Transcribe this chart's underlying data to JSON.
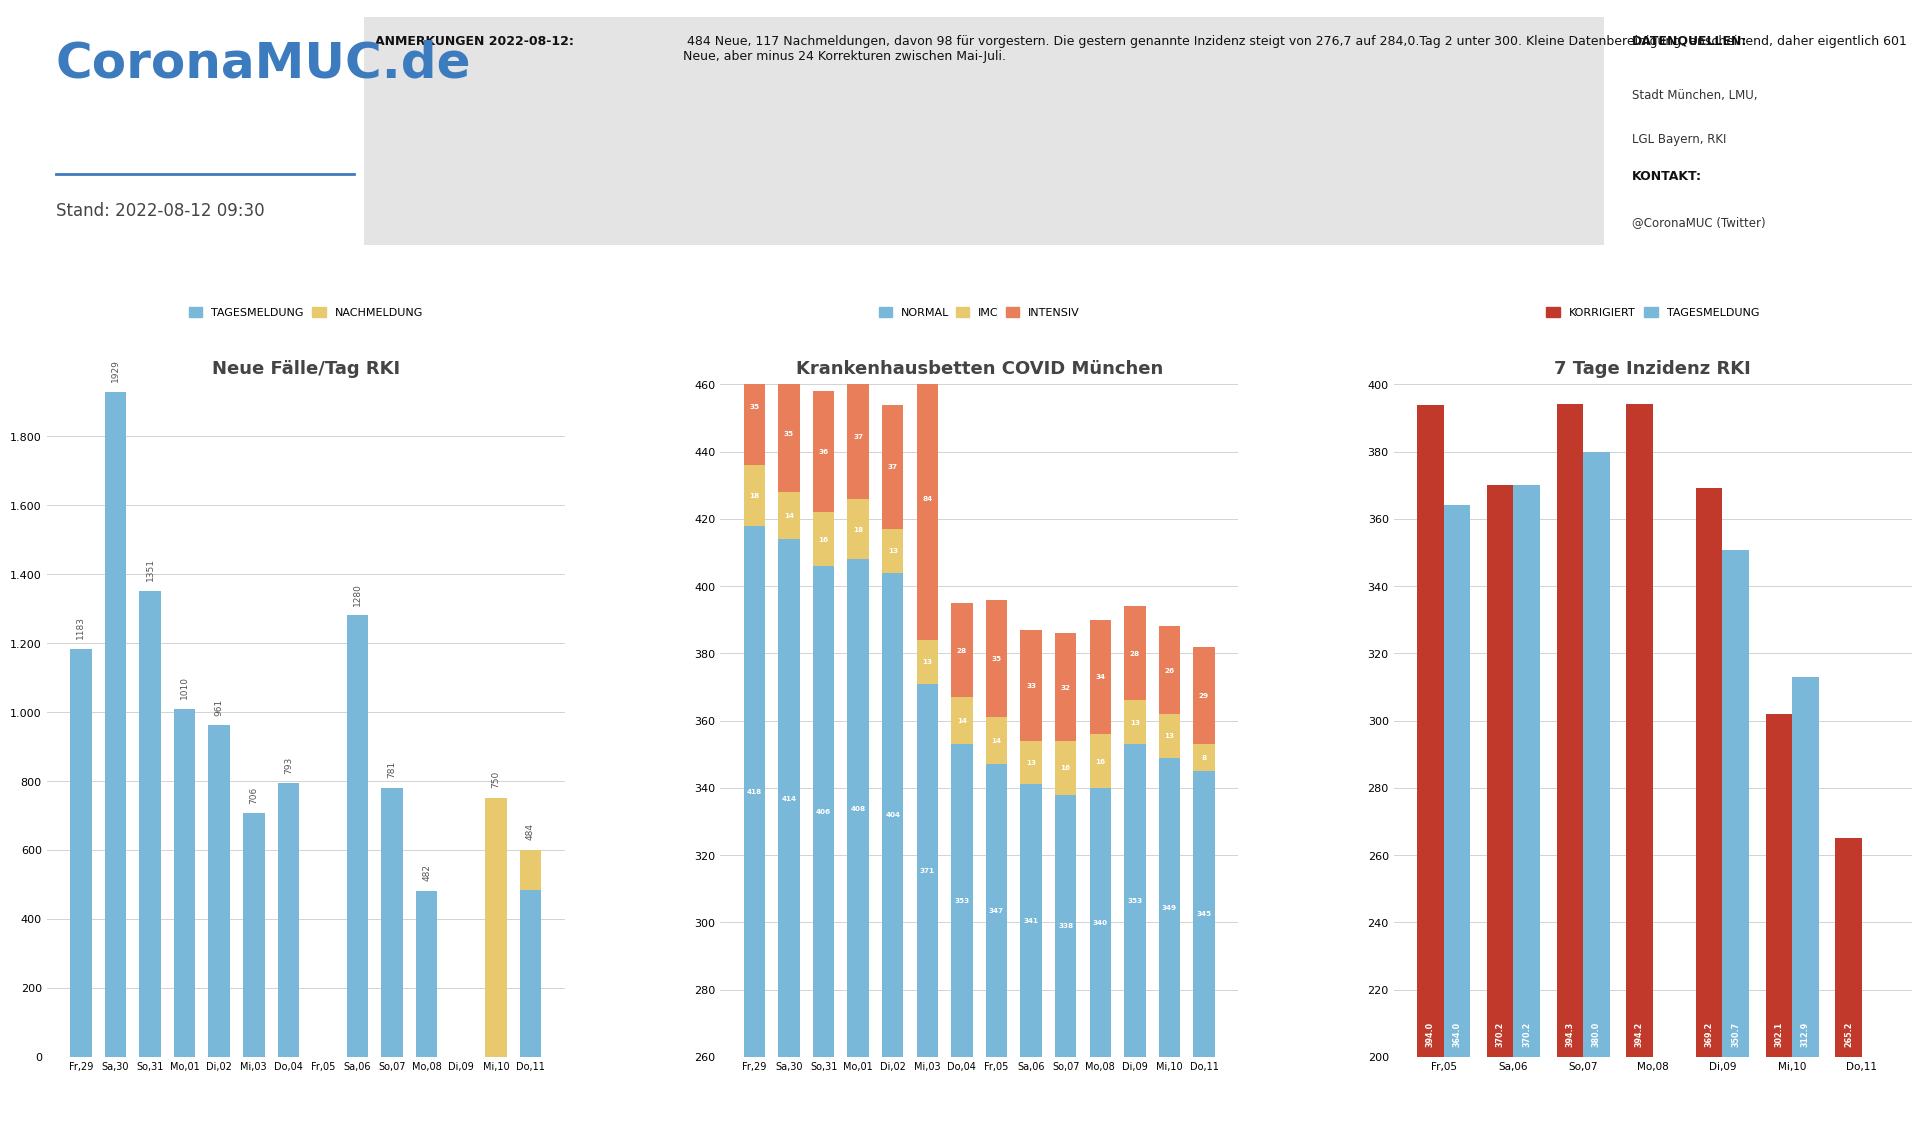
{
  "title_main": "CoronaMUC.de",
  "subtitle_main": "Stand: 2022-08-12 09:30",
  "anmerkungen_title": "ANMERKUNGEN 2022-08-12:",
  "anmerkungen_text": " 484 Neue, 117 Nachmeldungen, davon 98 für vorgestern. Die gestern genannte Inzidenz steigt von 276,7 auf 284,0.Tag 2 unter 300. Kleine Datenbereinigung, anscheinend, daher eigentlich 601 Neue, aber minus 24 Korrekturen zwischen Mai-Juli.",
  "datenquellen_title": "DATENQUELLEN:",
  "datenquellen_text": "Stadt München, LMU,\nLGL Bayern, RKI",
  "kontakt_title": "KONTAKT:",
  "kontakt_text": "@CoronaMUC (Twitter)",
  "chart1_title": "Neue Fälle/Tag RKI",
  "chart1_legend": [
    "TAGESMELDUNG",
    "NACHMELDUNG"
  ],
  "chart1_colors": [
    "#7ab8d9",
    "#e8c96e"
  ],
  "chart1_dates": [
    "Fr,29",
    "Sa,30",
    "So,31",
    "Mo,01",
    "Di,02",
    "Mi,03",
    "Do,04",
    "Fr,05",
    "Sa,06",
    "So,07",
    "Mo,08",
    "Di,09",
    "Mi,10",
    "Do,11"
  ],
  "chart1_tages": [
    1183,
    1929,
    1351,
    1010,
    961,
    706,
    793,
    0,
    1280,
    781,
    482,
    0,
    0,
    484
  ],
  "chart1_nach": [
    0,
    0,
    0,
    0,
    0,
    0,
    0,
    0,
    0,
    0,
    0,
    0,
    750,
    117
  ],
  "chart1_yticks": [
    0,
    200,
    400,
    600,
    800,
    1000,
    1200,
    1400,
    1600,
    1800
  ],
  "chart2_title": "Krankenhausbetten COVID München",
  "chart2_legend": [
    "NORMAL",
    "IMC",
    "INTENSIV"
  ],
  "chart2_colors": [
    "#7ab8d9",
    "#e8c96e",
    "#e87f5a"
  ],
  "chart2_dates": [
    "Fr,29",
    "Sa,30",
    "So,31",
    "Mo,01",
    "Di,02",
    "Mi,03",
    "Do,04",
    "Fr,05",
    "Sa,06",
    "So,07",
    "Mo,08",
    "Di,09",
    "Mi,10",
    "Do,11"
  ],
  "chart2_normal": [
    418,
    414,
    406,
    408,
    404,
    371,
    353,
    347,
    341,
    338,
    340,
    353,
    349,
    345
  ],
  "chart2_imc": [
    18,
    14,
    16,
    18,
    13,
    13,
    14,
    14,
    13,
    16,
    16,
    13,
    13,
    8
  ],
  "chart2_intensiv": [
    35,
    35,
    36,
    37,
    37,
    84,
    28,
    35,
    33,
    32,
    34,
    28,
    26,
    29
  ],
  "chart2_ylim": [
    260,
    460
  ],
  "chart2_yticks": [
    260,
    280,
    300,
    320,
    340,
    360,
    380,
    400,
    420,
    440,
    460
  ],
  "chart3_title": "7 Tage Inzidenz RKI",
  "chart3_legend": [
    "KORRIGIERT",
    "TAGESMELDUNG"
  ],
  "chart3_colors": [
    "#c0392b",
    "#7ab8d9"
  ],
  "chart3_dates": [
    "Fr,05",
    "Sa,06",
    "So,07",
    "Mo,08",
    "Di,09",
    "Mi,10",
    "Do,11"
  ],
  "chart3_korrigiert": [
    394.0,
    370.2,
    394.3,
    394.2,
    369.2,
    302.1,
    265.2
  ],
  "chart3_tages": [
    364.0,
    370.2,
    380.0,
    null,
    350.7,
    312.9,
    null
  ],
  "chart3_ylim": [
    200,
    400
  ],
  "chart3_yticks": [
    200,
    220,
    240,
    260,
    280,
    300,
    320,
    340,
    360,
    380,
    400
  ],
  "bg_color": "#ffffff",
  "stats_bg": "#3d7bbf",
  "footer_bg": "#2d6099",
  "anmerkungen_bg": "#e4e4e4"
}
